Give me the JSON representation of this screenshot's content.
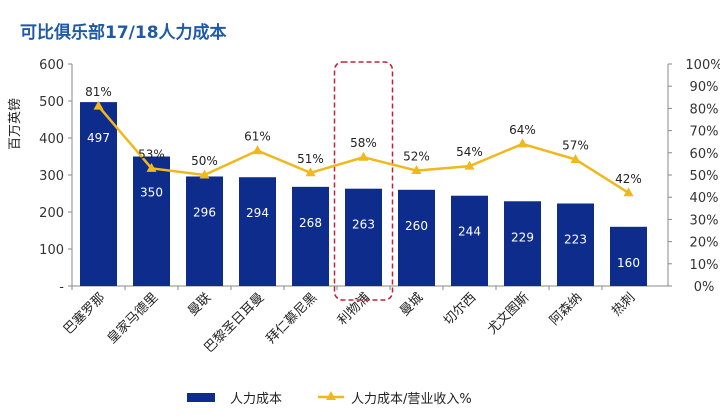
{
  "title": "可比俱乐部17/18人力成本",
  "chart_data": {
    "type": "bar",
    "categories": [
      "巴塞罗那",
      "皇家马德里",
      "曼联",
      "巴黎圣日耳曼",
      "拜仁慕尼黑",
      "利物浦",
      "曼城",
      "切尔西",
      "尤文图斯",
      "阿森纳",
      "热刺"
    ],
    "series": [
      {
        "name": "人力成本",
        "type": "bar",
        "axis": "left",
        "color": "#0d2c8c",
        "values": [
          497,
          350,
          296,
          294,
          268,
          263,
          260,
          244,
          229,
          223,
          160
        ],
        "labels": [
          "497",
          "350",
          "296",
          "294",
          "268",
          "263",
          "260",
          "244",
          "229",
          "223",
          "160"
        ]
      },
      {
        "name": "人力成本/营业收入%",
        "type": "line",
        "axis": "right",
        "color": "#f0b81c",
        "values": [
          81,
          53,
          50,
          61,
          51,
          58,
          52,
          54,
          64,
          57,
          42
        ],
        "labels": [
          "81%",
          "53%",
          "50%",
          "61%",
          "51%",
          "58%",
          "52%",
          "54%",
          "64%",
          "57%",
          "42%"
        ]
      }
    ],
    "ylabel": "百万英镑",
    "ylim": [
      0,
      600
    ],
    "y_ticks": [
      "-",
      "100",
      "200",
      "300",
      "400",
      "500",
      "600"
    ],
    "y2lim": [
      0,
      100
    ],
    "y2_ticks": [
      "0%",
      "10%",
      "20%",
      "30%",
      "40%",
      "50%",
      "60%",
      "70%",
      "80%",
      "90%",
      "100%"
    ],
    "highlight": {
      "category": "利物浦",
      "style": "dashed-rounded-box",
      "color": "#c0223b"
    },
    "legend_position": "bottom",
    "grid": false
  }
}
